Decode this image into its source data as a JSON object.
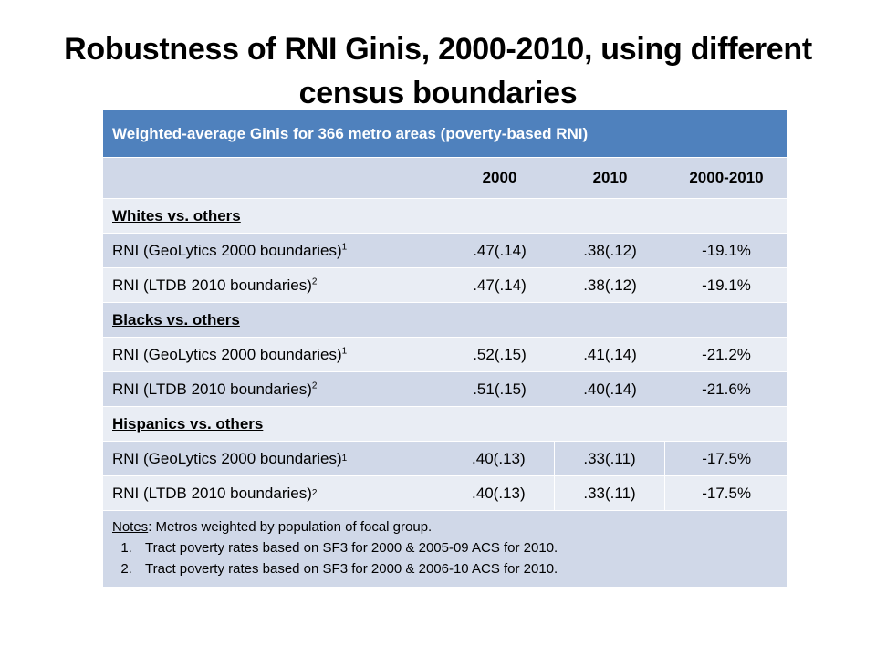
{
  "title": "Robustness of RNI Ginis, 2000-2010, using different census boundaries",
  "table": {
    "header": "Weighted-average Ginis for 366 metro areas (poverty-based RNI)",
    "columns": [
      "2000",
      "2010",
      "2000-2010"
    ],
    "sections": [
      {
        "label": "Whites vs. others",
        "rows": [
          {
            "label": "RNI (GeoLytics 2000 boundaries)",
            "sup": "1",
            "v2000": ".47(.14)",
            "v2010": ".38(.12)",
            "change": "-19.1%"
          },
          {
            "label": "RNI (LTDB 2010 boundaries)",
            "sup": "2",
            "v2000": ".47(.14)",
            "v2010": ".38(.12)",
            "change": "-19.1%"
          }
        ]
      },
      {
        "label": "Blacks vs. others",
        "rows": [
          {
            "label": "RNI (GeoLytics 2000 boundaries)",
            "sup": "1",
            "v2000": ".52(.15)",
            "v2010": ".41(.14)",
            "change": "-21.2%"
          },
          {
            "label": "RNI (LTDB 2010 boundaries)",
            "sup": "2",
            "v2000": ".51(.15)",
            "v2010": ".40(.14)",
            "change": "-21.6%"
          }
        ]
      },
      {
        "label": "Hispanics vs. others",
        "rows": [
          {
            "label": "RNI (GeoLytics 2000 boundaries)",
            "sup": "1",
            "v2000": ".40(.13)",
            "v2010": ".33(.11)",
            "change": "-17.5%"
          },
          {
            "label": "RNI (LTDB 2010 boundaries)",
            "sup": "2",
            "v2000": ".40(.13)",
            "v2010": ".33(.11)",
            "change": "-17.5%"
          }
        ]
      }
    ],
    "notes": {
      "lead_label": "Notes",
      "lead_text": ": Metros weighted by population of focal group.",
      "items": [
        "Tract poverty rates based on SF3 for 2000 & 2005-09 ACS for 2010.",
        "Tract poverty rates based on SF3 for 2000 & 2006-10 ACS for 2010."
      ]
    }
  },
  "colors": {
    "header_bg": "#4f81bd",
    "dark_row": "#d0d8e8",
    "light_row": "#e9edf4"
  }
}
